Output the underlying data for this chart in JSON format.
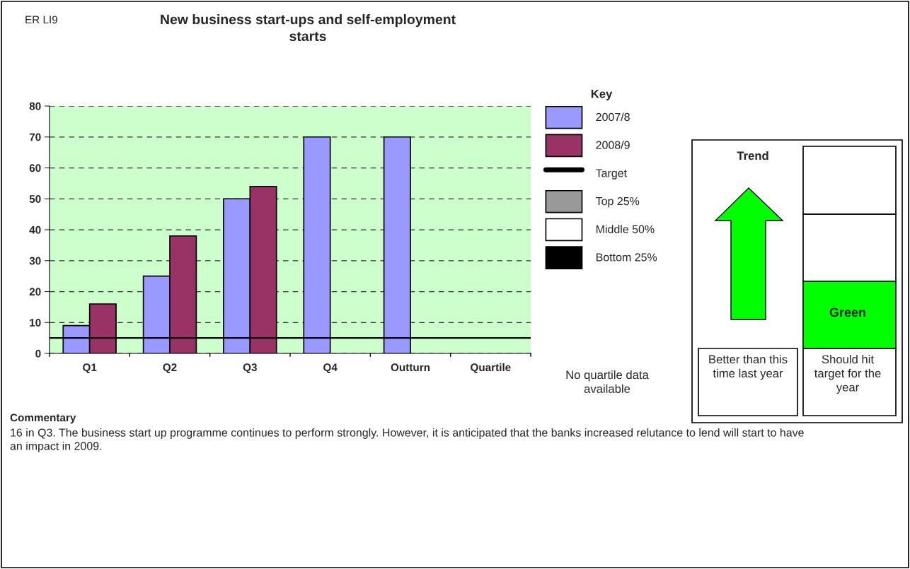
{
  "chart_data": {
    "type": "bar",
    "title": "New business start-ups and self-employment starts",
    "categories": [
      "Q1",
      "Q2",
      "Q3",
      "Q4",
      "Outturn",
      "Quartile"
    ],
    "series": [
      {
        "name": "2007/8",
        "color": "#9999ff",
        "values": [
          9,
          25,
          50,
          70,
          70,
          null
        ]
      },
      {
        "name": "2008/9",
        "color": "#993366",
        "values": [
          16,
          38,
          54,
          null,
          null,
          null
        ]
      },
      {
        "name": "Top 25%",
        "color": "#999999",
        "values": [
          null,
          null,
          null,
          null,
          null,
          null
        ]
      },
      {
        "name": "Middle 50%",
        "color": "#ffffff",
        "values": [
          null,
          null,
          null,
          null,
          null,
          null
        ]
      },
      {
        "name": "Bottom 25%",
        "color": "#000000",
        "values": [
          null,
          null,
          null,
          null,
          null,
          null
        ]
      }
    ],
    "ref_lines": [
      {
        "axis": "y",
        "value": 5,
        "label": "Target",
        "color": "#000000",
        "line_style": "solid"
      }
    ],
    "ylim": [
      0,
      80
    ],
    "yticks": [
      0,
      10,
      20,
      30,
      40,
      50,
      60,
      70,
      80
    ],
    "grid": "y",
    "legend": "right",
    "legend_title": "Key",
    "annotations": [
      "ER LI9",
      "Commentary",
      "16 in Q3. The business start up programme continues to perform strongly. However, it is anticipated that the banks increased relutance to lend will start to have an impact in 2009.",
      "No quartile data available",
      "Trend",
      "Better than this time last year",
      "Green",
      "Should hit target for the year"
    ]
  }
}
